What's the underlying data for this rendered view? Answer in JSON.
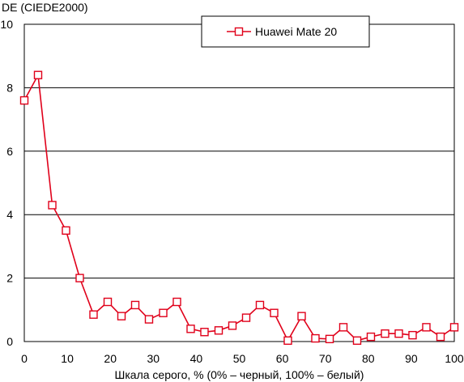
{
  "chart_data": {
    "type": "line",
    "ylabel": "DE (CIEDE2000)",
    "xlabel": "Шкала серого, % (0% – черный, 100% – белый)",
    "xlim": [
      0,
      100
    ],
    "ylim": [
      0,
      10
    ],
    "x_ticks": [
      "0",
      "10",
      "20",
      "30",
      "40",
      "50",
      "60",
      "70",
      "80",
      "90",
      "100"
    ],
    "y_ticks": [
      "0",
      "2",
      "4",
      "6",
      "8",
      "10"
    ],
    "grid": "horizontal",
    "legend_position": "top-right",
    "series": [
      {
        "name": "Huawei Mate 20",
        "color": "#e0001a",
        "marker": "open-square",
        "x": [
          0,
          3.2,
          6.5,
          9.7,
          12.9,
          16.1,
          19.4,
          22.6,
          25.8,
          29.0,
          32.3,
          35.5,
          38.7,
          41.9,
          45.2,
          48.4,
          51.6,
          54.8,
          58.1,
          61.3,
          64.5,
          67.7,
          71.0,
          74.2,
          77.4,
          80.6,
          83.9,
          87.1,
          90.3,
          93.5,
          96.8,
          100
        ],
        "y": [
          7.6,
          8.4,
          4.3,
          3.5,
          2.0,
          0.85,
          1.25,
          0.8,
          1.15,
          0.7,
          0.9,
          1.25,
          0.4,
          0.3,
          0.35,
          0.5,
          0.75,
          1.15,
          0.9,
          0.03,
          0.8,
          0.1,
          0.08,
          0.45,
          0.03,
          0.15,
          0.25,
          0.25,
          0.2,
          0.45,
          0.15,
          0.45
        ]
      }
    ]
  }
}
